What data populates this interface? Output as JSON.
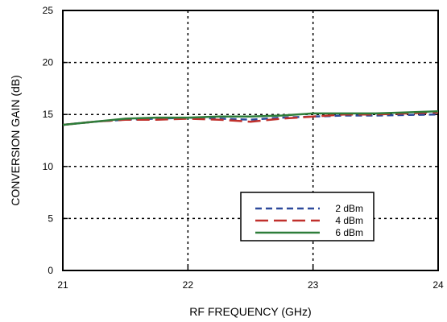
{
  "chart_data": {
    "type": "line",
    "title": "",
    "xlabel": "RF FREQUENCY (GHz)",
    "ylabel": "CONVERSION GAIN (dB)",
    "xlim": [
      21,
      24
    ],
    "ylim": [
      0,
      25
    ],
    "x_ticks": [
      21,
      22,
      23,
      24
    ],
    "y_ticks": [
      0,
      5,
      10,
      15,
      20,
      25
    ],
    "x_tick_labels": [
      "21",
      "22",
      "23",
      "24"
    ],
    "y_tick_labels": [
      "0",
      "5",
      "10",
      "15",
      "20",
      "25"
    ],
    "grid": true,
    "legend": "center-right, boxed",
    "series": [
      {
        "name": "2 dBm",
        "color": "#2e4a9c",
        "style": "short-dash",
        "x": [
          21.0,
          21.25,
          21.5,
          21.75,
          22.0,
          22.25,
          22.5,
          22.75,
          23.0,
          23.25,
          23.5,
          23.75,
          24.0
        ],
        "y": [
          14.0,
          14.3,
          14.5,
          14.6,
          14.7,
          14.6,
          14.5,
          14.7,
          14.8,
          14.9,
          14.9,
          14.95,
          15.0
        ]
      },
      {
        "name": "4 dBm",
        "color": "#c0302c",
        "style": "long-dash",
        "x": [
          21.0,
          21.25,
          21.5,
          21.75,
          22.0,
          22.25,
          22.5,
          22.75,
          23.0,
          23.25,
          23.5,
          23.75,
          24.0
        ],
        "y": [
          14.0,
          14.3,
          14.5,
          14.5,
          14.6,
          14.5,
          14.3,
          14.6,
          14.8,
          15.0,
          15.0,
          15.1,
          15.2
        ]
      },
      {
        "name": "6 dBm",
        "color": "#2e7d3a",
        "style": "solid",
        "x": [
          21.0,
          21.25,
          21.5,
          21.75,
          22.0,
          22.25,
          22.5,
          22.75,
          23.0,
          23.25,
          23.5,
          23.75,
          24.0
        ],
        "y": [
          14.0,
          14.3,
          14.6,
          14.7,
          14.7,
          14.8,
          14.8,
          14.9,
          15.1,
          15.1,
          15.1,
          15.2,
          15.3
        ]
      }
    ]
  }
}
